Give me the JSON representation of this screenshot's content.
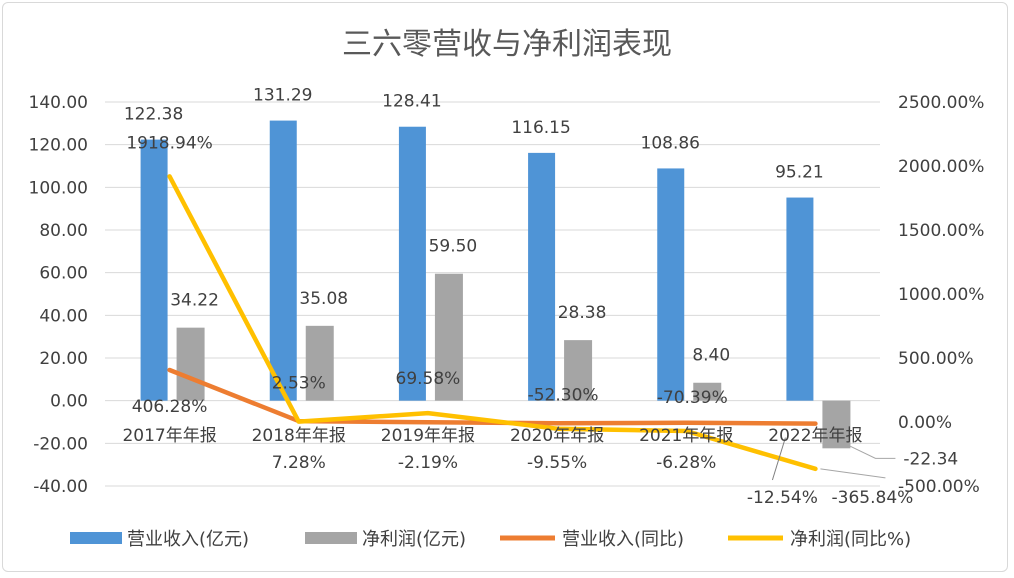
{
  "chart_data": {
    "type": "bar+line",
    "title": "三六零营收与净利润表现",
    "categories": [
      "2017年年报",
      "2018年年报",
      "2019年年报",
      "2020年年报",
      "2021年年报",
      "2022年年报"
    ],
    "left_axis": {
      "ylim": [
        -40,
        140
      ],
      "ticks": [
        "140.00",
        "120.00",
        "100.00",
        "80.00",
        "60.00",
        "40.00",
        "20.00",
        "0.00",
        "-20.00",
        "-40.00"
      ]
    },
    "right_axis": {
      "ylim": [
        -500,
        2500
      ],
      "ticks": [
        "2500.00%",
        "2000.00%",
        "1500.00%",
        "1000.00%",
        "500.00%",
        "0.00%",
        "-500.00%"
      ]
    },
    "grid": true,
    "legend_position": "bottom",
    "series": [
      {
        "name": "营业收入(亿元)",
        "type": "bar",
        "axis": "left",
        "color": "#4f94d6",
        "values": [
          122.38,
          131.29,
          128.41,
          116.15,
          108.86,
          95.21
        ],
        "labels": [
          "122.38",
          "131.29",
          "128.41",
          "116.15",
          "108.86",
          "95.21"
        ]
      },
      {
        "name": "净利润(亿元)",
        "type": "bar",
        "axis": "left",
        "color": "#a5a5a5",
        "values": [
          34.22,
          35.08,
          59.5,
          28.38,
          8.4,
          -22.34
        ],
        "labels": [
          "34.22",
          "35.08",
          "59.50",
          "28.38",
          "8.40",
          "-22.34"
        ]
      },
      {
        "name": "营业收入(同比)",
        "type": "line",
        "axis": "right",
        "color": "#ed7d31",
        "values": [
          406.28,
          7.28,
          -2.19,
          -9.55,
          -6.28,
          -12.54
        ],
        "labels": [
          "406.28%",
          "7.28%",
          "-2.19%",
          "-9.55%",
          "-6.28%",
          "-12.54%"
        ]
      },
      {
        "name": "净利润(同比%)",
        "type": "line",
        "axis": "right",
        "color": "#ffc000",
        "values": [
          1918.94,
          2.53,
          69.58,
          -52.3,
          -70.39,
          -365.84
        ],
        "labels": [
          "1918.94%",
          "2.53%",
          "69.58%",
          "-52.30%",
          "-70.39%",
          "-365.84%"
        ]
      }
    ]
  }
}
